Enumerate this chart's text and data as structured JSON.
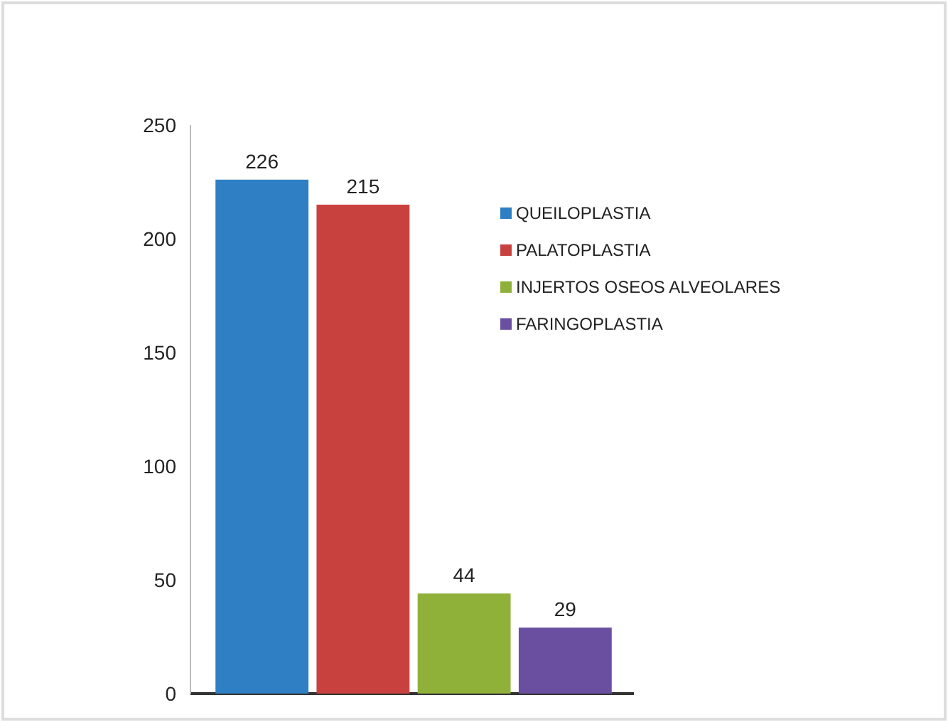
{
  "chart_data": {
    "type": "bar",
    "categories": [
      null
    ],
    "series": [
      {
        "name": "QUEILOPLASTIA",
        "color": "#2e7fc4",
        "values": [
          226
        ]
      },
      {
        "name": "PALATOPLASTIA",
        "color": "#c9413f",
        "values": [
          215
        ]
      },
      {
        "name": "INJERTOS OSEOS ALVEOLARES",
        "color": "#8fb13a",
        "values": [
          44
        ]
      },
      {
        "name": "FARINGOPLASTIA",
        "color": "#6a4fa0",
        "values": [
          29
        ]
      }
    ],
    "ylim": [
      0,
      250
    ],
    "yticks": [
      0,
      50,
      100,
      150,
      200,
      250
    ],
    "data_labels": true,
    "legend": "top right"
  }
}
